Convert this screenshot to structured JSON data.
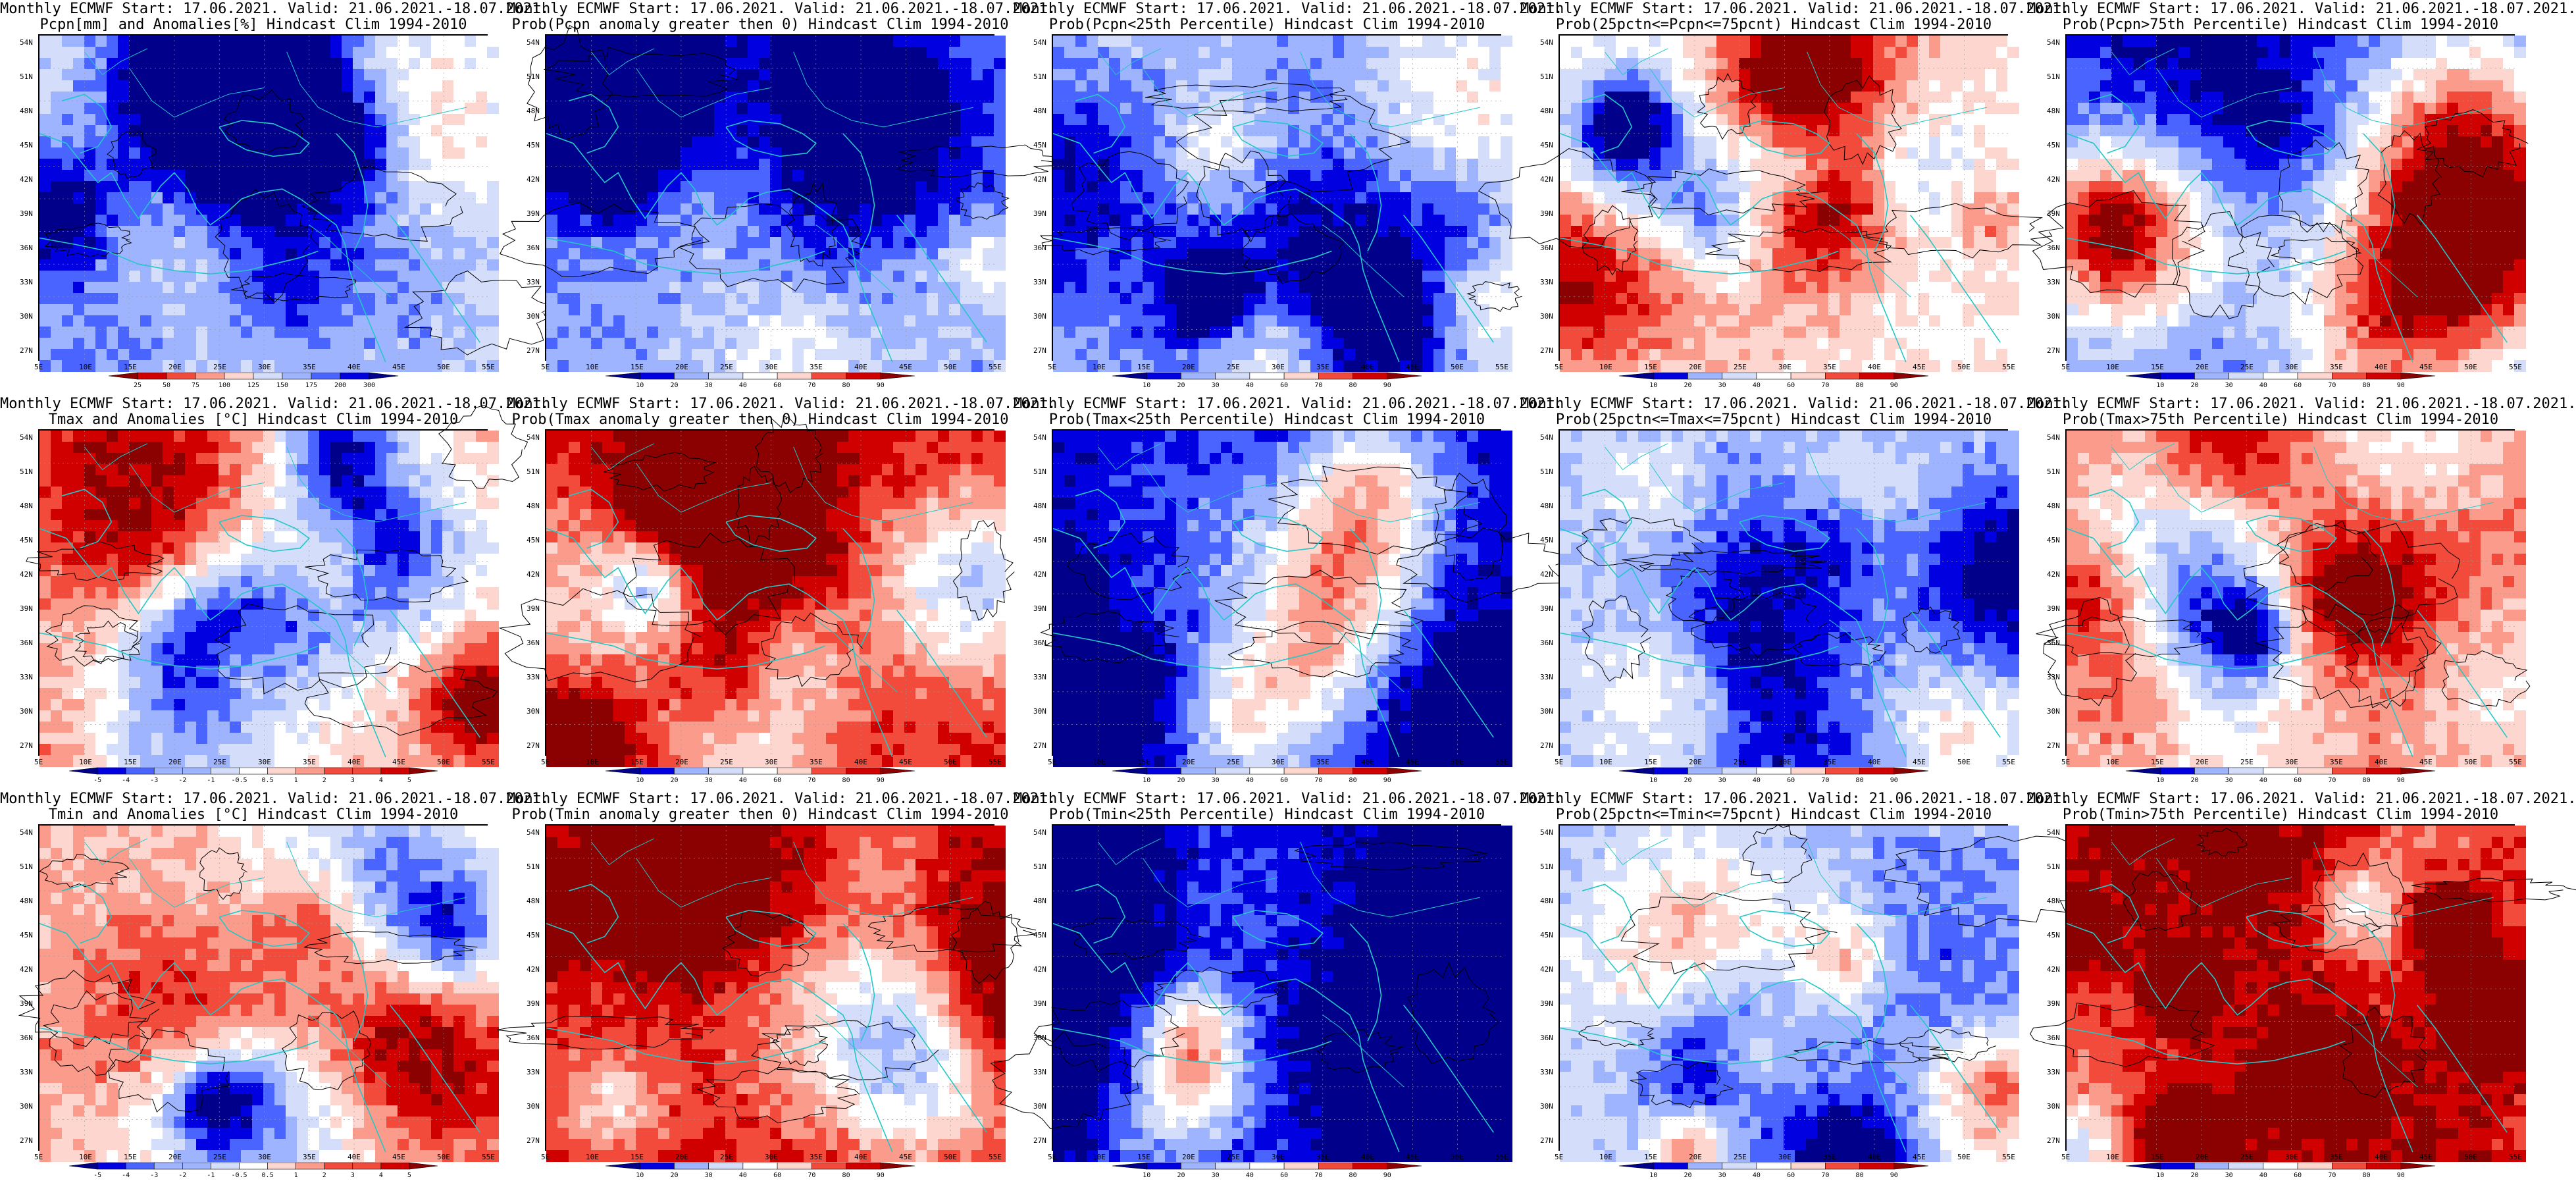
{
  "lat_ticks": [
    "54N",
    "51N",
    "48N",
    "45N",
    "42N",
    "39N",
    "36N",
    "33N",
    "30N",
    "27N"
  ],
  "lon_ticks": [
    "5E",
    "10E",
    "15E",
    "20E",
    "25E",
    "30E",
    "35E",
    "40E",
    "45E",
    "50E",
    "55E"
  ],
  "colors": {
    "prob": [
      "#00008b",
      "#0000e0",
      "#4a64ff",
      "#9fb4ff",
      "#d4defa",
      "#ffffff",
      "#fdd6d0",
      "#fb9b8c",
      "#f24a3b",
      "#d00000",
      "#8b0000"
    ],
    "pcpn": [
      "#8b0000",
      "#d00000",
      "#f24a3b",
      "#fb9b8c",
      "#fdd6d0",
      "#ffffff",
      "#d4defa",
      "#9fb4ff",
      "#4a64ff",
      "#0000e0",
      "#00008b"
    ],
    "anom": [
      "#00008b",
      "#0000e0",
      "#4a64ff",
      "#9fb4ff",
      "#d4defa",
      "#ffffff",
      "#fdd6d0",
      "#fb9b8c",
      "#f24a3b",
      "#d00000",
      "#8b0000"
    ],
    "contour": "#000000",
    "coast": "#22c7c7"
  },
  "colorbar_labels": {
    "pcpn": [
      "25",
      "50",
      "75",
      "100",
      "125",
      "150",
      "175",
      "200",
      "300"
    ],
    "prob": [
      "10",
      "20",
      "30",
      "40",
      "60",
      "70",
      "80",
      "90"
    ],
    "anom": [
      "-5",
      "-4",
      "-3",
      "-2",
      "-1",
      "-0.5",
      "0.5",
      "1",
      "2",
      "3",
      "4",
      "5"
    ]
  },
  "panels": [
    {
      "line1": "Monthly ECMWF Start: 17.06.2021. Valid: 21.06.2021.-18.07.2021.",
      "line2": "Pcpn[mm] and Anomalies[%] Hindcast Clim 1994-2010",
      "cbar": "pcpn",
      "bias": 0.15,
      "seed": 1
    },
    {
      "line1": "Monthly ECMWF Start: 17.06.2021. Valid: 21.06.2021.-18.07.2021.",
      "line2": "Prob(Pcpn anomaly greater then 0) Hindcast Clim 1994-2010",
      "cbar": "prob",
      "bias": -0.45,
      "seed": 2
    },
    {
      "line1": "Monthly ECMWF Start: 17.06.2021. Valid: 21.06.2021.-18.07.2021.",
      "line2": "Prob(Pcpn<25th Percentile) Hindcast Clim 1994-2010",
      "cbar": "prob",
      "bias": -0.25,
      "seed": 3
    },
    {
      "line1": "Monthly ECMWF Start: 17.06.2021. Valid: 21.06.2021.-18.07.2021.",
      "line2": "Prob(25pctn<=Pcpn<=75pcnt) Hindcast Clim 1994-2010",
      "cbar": "prob",
      "bias": 0.1,
      "seed": 4
    },
    {
      "line1": "Monthly ECMWF Start: 17.06.2021. Valid: 21.06.2021.-18.07.2021.",
      "line2": "Prob(Pcpn>75th Percentile) Hindcast Clim 1994-2010",
      "cbar": "prob",
      "bias": -0.6,
      "seed": 5
    },
    {
      "line1": "Monthly ECMWF Start: 17.06.2021. Valid: 21.06.2021.-18.07.2021.",
      "line2": "Tmax and Anomalies [°C] Hindcast Clim 1994-2010",
      "cbar": "anom",
      "bias": 0.3,
      "seed": 6
    },
    {
      "line1": "Monthly ECMWF Start: 17.06.2021. Valid: 21.06.2021.-18.07.2021.",
      "line2": "Prob(Tmax anomaly greater then 0) Hindcast Clim 1994-2010",
      "cbar": "prob",
      "bias": 0.75,
      "seed": 7
    },
    {
      "line1": "Monthly ECMWF Start: 17.06.2021. Valid: 21.06.2021.-18.07.2021.",
      "line2": "Prob(Tmax<25th Percentile) Hindcast Clim 1994-2010",
      "cbar": "prob",
      "bias": -0.85,
      "seed": 8
    },
    {
      "line1": "Monthly ECMWF Start: 17.06.2021. Valid: 21.06.2021.-18.07.2021.",
      "line2": "Prob(25pctn<=Tmax<=75pcnt) Hindcast Clim 1994-2010",
      "cbar": "prob",
      "bias": -0.3,
      "seed": 9
    },
    {
      "line1": "Monthly ECMWF Start: 17.06.2021. Valid: 21.06.2021.-18.07.2021.",
      "line2": "Prob(Tmax>75th Percentile) Hindcast Clim 1994-2010",
      "cbar": "prob",
      "bias": 0.45,
      "seed": 10
    },
    {
      "line1": "Monthly ECMWF Start: 17.06.2021. Valid: 21.06.2021.-18.07.2021.",
      "line2": "Tmin and Anomalies [°C] Hindcast Clim 1994-2010",
      "cbar": "anom",
      "bias": 0.25,
      "seed": 11
    },
    {
      "line1": "Monthly ECMWF Start: 17.06.2021. Valid: 21.06.2021.-18.07.2021.",
      "line2": "Prob(Tmin anomaly greater then 0) Hindcast Clim 1994-2010",
      "cbar": "prob",
      "bias": 0.8,
      "seed": 12
    },
    {
      "line1": "Monthly ECMWF Start: 17.06.2021. Valid: 21.06.2021.-18.07.2021.",
      "line2": "Prob(Tmin<25th Percentile) Hindcast Clim 1994-2010",
      "cbar": "prob",
      "bias": -0.95,
      "seed": 13
    },
    {
      "line1": "Monthly ECMWF Start: 17.06.2021. Valid: 21.06.2021.-18.07.2021.",
      "line2": "Prob(25pctn<=Tmin<=75pcnt) Hindcast Clim 1994-2010",
      "cbar": "prob",
      "bias": -0.35,
      "seed": 14
    },
    {
      "line1": "Monthly ECMWF Start: 17.06.2021. Valid: 21.06.2021.-18.07.2021.",
      "line2": "Prob(Tmin>75th Percentile) Hindcast Clim 1994-2010",
      "cbar": "prob",
      "bias": 0.55,
      "seed": 15
    }
  ]
}
